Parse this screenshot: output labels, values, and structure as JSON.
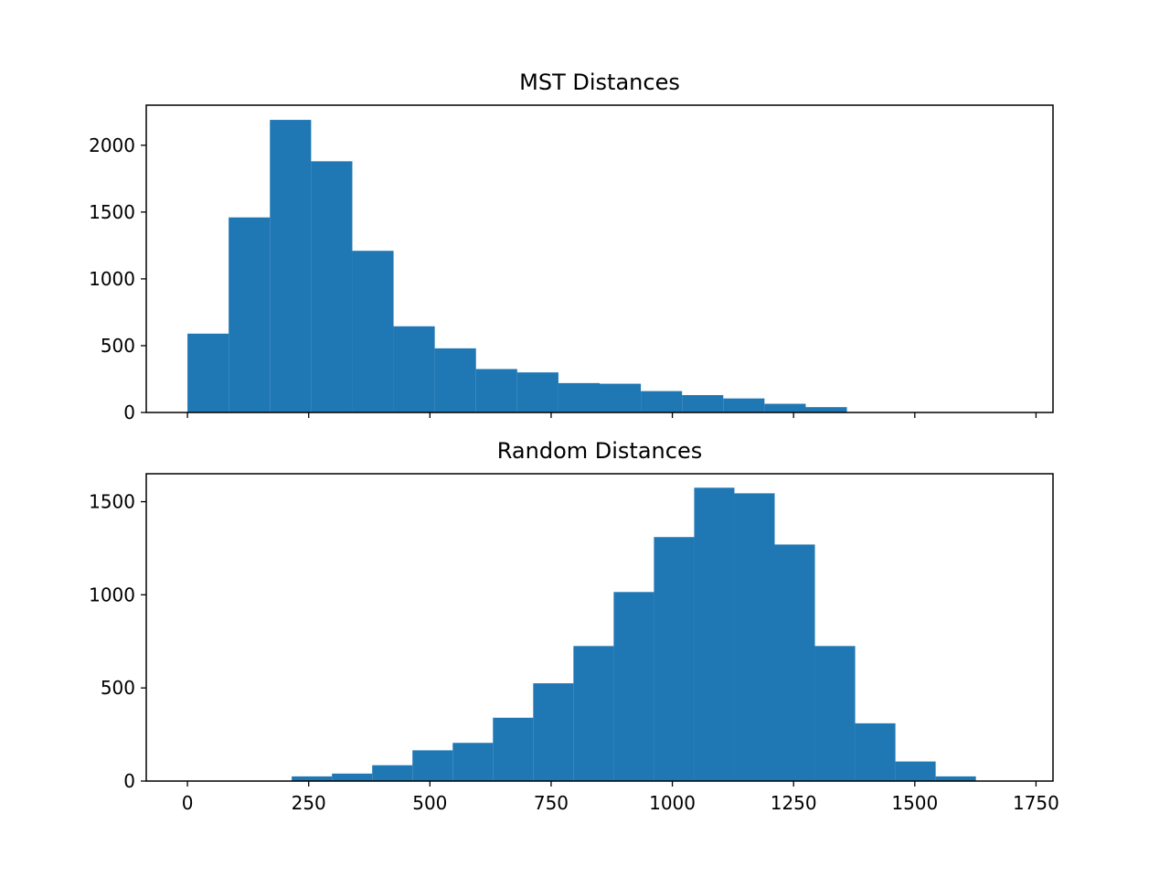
{
  "colors": {
    "bar": "#1f77b4",
    "axes": "#000000",
    "background": "#ffffff"
  },
  "chart_data": [
    {
      "type": "bar",
      "title": "MST Distances",
      "xlabel": "",
      "ylabel": "",
      "xlim": [
        -85,
        1785
      ],
      "ylim": [
        0,
        2300
      ],
      "xticks": [
        0,
        250,
        500,
        750,
        1000,
        1250,
        1500,
        1750
      ],
      "xtick_labels_shown": false,
      "yticks": [
        0,
        500,
        1000,
        1500,
        2000
      ],
      "ytick_labels": [
        "0",
        "500",
        "1000",
        "1500",
        "2000"
      ],
      "bin_edges": [
        0,
        85,
        170,
        255,
        340,
        425,
        510,
        595,
        680,
        765,
        850,
        935,
        1020,
        1105,
        1190,
        1275,
        1360
      ],
      "values": [
        590,
        1460,
        2190,
        1880,
        1210,
        645,
        480,
        325,
        300,
        220,
        215,
        160,
        130,
        105,
        65,
        40
      ],
      "grid": false,
      "legend": "none"
    },
    {
      "type": "bar",
      "title": "Random Distances",
      "xlabel": "",
      "ylabel": "",
      "xlim": [
        -85,
        1785
      ],
      "ylim": [
        0,
        1650
      ],
      "xticks": [
        0,
        250,
        500,
        750,
        1000,
        1250,
        1500,
        1750
      ],
      "xtick_labels_shown": true,
      "xtick_labels": [
        "0",
        "250",
        "500",
        "750",
        "1000",
        "1250",
        "1500",
        "1750"
      ],
      "yticks": [
        0,
        500,
        1000,
        1500
      ],
      "ytick_labels": [
        "0",
        "500",
        "1000",
        "1500"
      ],
      "bin_edges": [
        215,
        298,
        381,
        464,
        547,
        630,
        713,
        796,
        879,
        962,
        1045,
        1128,
        1211,
        1294,
        1377,
        1460,
        1543,
        1626
      ],
      "values": [
        25,
        40,
        85,
        165,
        205,
        340,
        525,
        725,
        1015,
        1310,
        1575,
        1545,
        1270,
        725,
        310,
        105,
        25
      ],
      "grid": false,
      "legend": "none"
    }
  ]
}
